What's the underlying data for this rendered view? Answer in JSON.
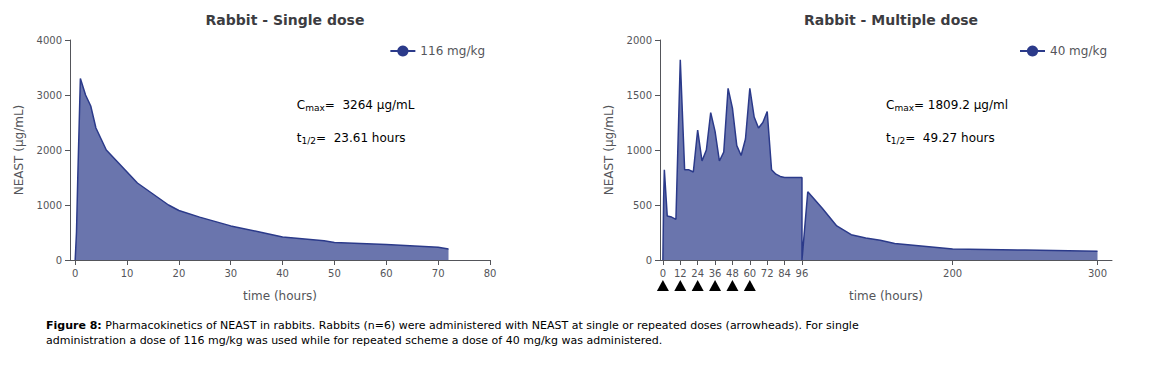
{
  "chart_data": [
    {
      "type": "area",
      "title": "Rabbit - Single dose",
      "xlabel": "time (hours)",
      "ylabel": "NEAST (μg/mL)",
      "x": [
        0,
        0.25,
        0.5,
        1,
        2,
        3,
        4,
        5,
        6,
        7,
        8,
        10,
        12,
        15,
        18,
        20,
        24,
        30,
        36,
        40,
        48,
        50,
        60,
        70,
        72
      ],
      "series": [
        {
          "name": "116 mg/kg",
          "color": "#2b3a8a",
          "values": [
            0,
            500,
            1500,
            3300,
            3000,
            2800,
            2400,
            2200,
            2000,
            1900,
            1800,
            1600,
            1400,
            1200,
            1000,
            900,
            780,
            620,
            500,
            420,
            350,
            320,
            280,
            230,
            200
          ]
        }
      ],
      "xlim": [
        -1,
        80
      ],
      "ylim": [
        0,
        4000
      ],
      "xticks": [
        0,
        10,
        20,
        30,
        40,
        50,
        60,
        70,
        80
      ],
      "yticks": [
        0,
        1000,
        2000,
        3000,
        4000
      ],
      "grid": false,
      "legend": "upper right",
      "annotations": [
        {
          "text": "Cmax=  3264 μg/mL",
          "sub": "max"
        },
        {
          "text": "t1/2=  23.61 hours",
          "sub": "1/2"
        }
      ]
    },
    {
      "type": "area",
      "title": "Rabbit - Multiple dose",
      "xlabel": "time (hours)",
      "ylabel": "NEAST (μg/mL)",
      "x": [
        0,
        0.5,
        1,
        3,
        6,
        9,
        12,
        15,
        18,
        21,
        24,
        27,
        30,
        33,
        36,
        39,
        42,
        45,
        48,
        51,
        54,
        57,
        60,
        63,
        66,
        69,
        72,
        75,
        78,
        81,
        84,
        96,
        96.01,
        100,
        110,
        120,
        130,
        140,
        150,
        160,
        200,
        250,
        300
      ],
      "series": [
        {
          "name": "40 mg/kg",
          "color": "#2b3a8a",
          "values": [
            0,
            550,
            820,
            400,
            390,
            370,
            1820,
            820,
            820,
            800,
            1180,
            900,
            1000,
            1340,
            1170,
            900,
            980,
            1560,
            1380,
            1040,
            950,
            1100,
            1560,
            1300,
            1200,
            1250,
            1350,
            820,
            780,
            760,
            750,
            750,
            0,
            620,
            470,
            310,
            230,
            200,
            180,
            150,
            100,
            90,
            80
          ]
        }
      ],
      "xlim": [
        -2,
        310
      ],
      "ylim": [
        0,
        2000
      ],
      "xticks": [
        0,
        12,
        24,
        36,
        48,
        60,
        72,
        84,
        96,
        200,
        300
      ],
      "yticks": [
        0,
        500,
        1000,
        1500,
        2000
      ],
      "grid": false,
      "legend": "upper right",
      "annotations": [
        {
          "text": "Cmax= 1809.2 μg/ml",
          "sub": "max"
        },
        {
          "text": "t1/2=  49.27 hours",
          "sub": "1/2"
        }
      ],
      "arrowheads": [
        0,
        12,
        24,
        36,
        48,
        60
      ]
    }
  ],
  "caption": {
    "bold": "Figure 8:",
    "text": " Pharmacokinetics of NEAST in rabbits. Rabbits (n=6) were administered with NEAST at single or repeated doses (arrowheads). For single\nadministration a dose of 116 mg/kg was used while for repeated scheme a dose of 40 mg/kg was administered."
  }
}
